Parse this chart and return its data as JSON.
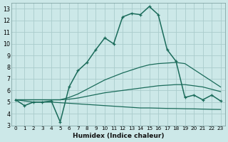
{
  "xlabel": "Humidex (Indice chaleur)",
  "bg_color": "#cce8e8",
  "grid_color": "#aacccc",
  "line_color": "#1a6b5a",
  "x_values": [
    0,
    1,
    2,
    3,
    4,
    5,
    6,
    7,
    8,
    9,
    10,
    11,
    12,
    13,
    14,
    15,
    16,
    17,
    18,
    19,
    20,
    21,
    22,
    23
  ],
  "main_line": [
    5.2,
    4.7,
    5.0,
    5.0,
    5.1,
    3.3,
    6.3,
    7.7,
    8.4,
    9.5,
    10.5,
    10.0,
    12.3,
    12.6,
    12.5,
    13.2,
    12.5,
    9.5,
    8.5,
    5.4,
    5.6,
    5.2,
    5.6,
    5.1
  ],
  "upper_line": [
    5.2,
    5.2,
    5.2,
    5.2,
    5.2,
    5.2,
    5.4,
    5.7,
    6.1,
    6.5,
    6.9,
    7.2,
    7.5,
    7.75,
    8.0,
    8.2,
    8.3,
    8.35,
    8.4,
    8.3,
    7.8,
    7.3,
    6.8,
    6.3
  ],
  "mid_line": [
    5.2,
    5.2,
    5.2,
    5.2,
    5.2,
    5.2,
    5.25,
    5.35,
    5.5,
    5.65,
    5.8,
    5.9,
    6.0,
    6.1,
    6.2,
    6.3,
    6.4,
    6.45,
    6.5,
    6.5,
    6.4,
    6.3,
    6.1,
    5.9
  ],
  "lower_line": [
    5.2,
    5.1,
    5.0,
    5.0,
    5.0,
    4.95,
    4.9,
    4.85,
    4.8,
    4.75,
    4.7,
    4.65,
    4.6,
    4.55,
    4.5,
    4.5,
    4.48,
    4.46,
    4.45,
    4.43,
    4.42,
    4.4,
    4.38,
    4.37
  ],
  "ylim": [
    3.0,
    13.5
  ],
  "yticks": [
    3,
    4,
    5,
    6,
    7,
    8,
    9,
    10,
    11,
    12,
    13
  ],
  "xlim": [
    -0.5,
    23.5
  ]
}
